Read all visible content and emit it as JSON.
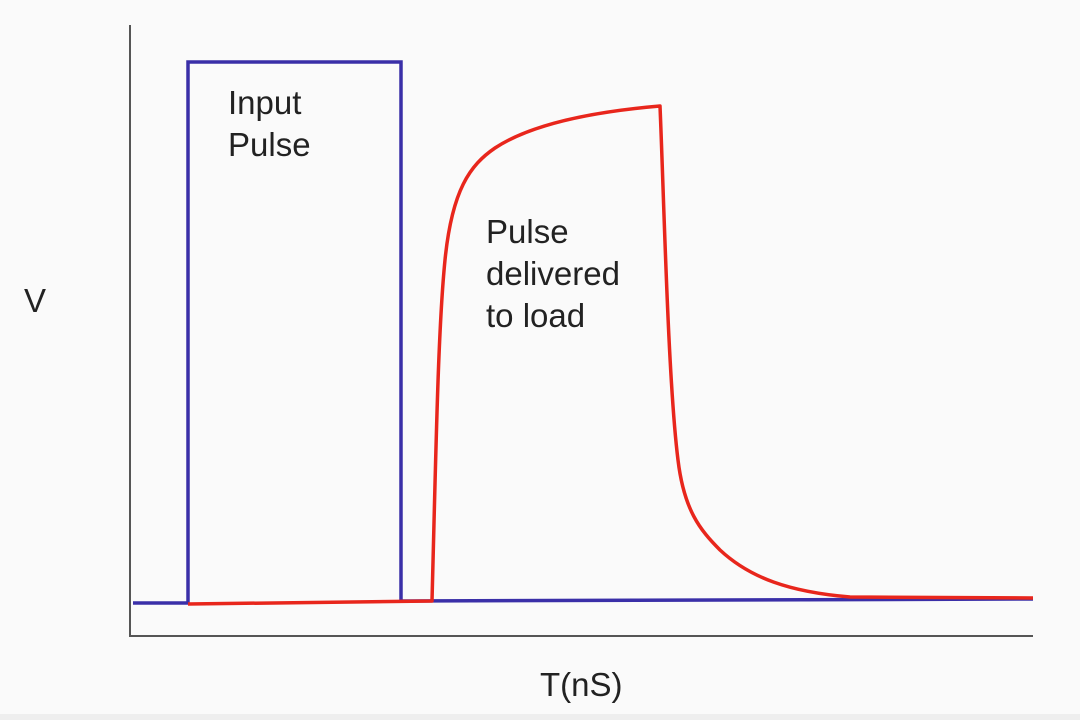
{
  "diagram": {
    "y_axis_label": "V",
    "x_axis_label": "T(nS)",
    "input_pulse": {
      "label_line1": "Input",
      "label_line2": "Pulse",
      "color": "#3a2fa8"
    },
    "output_pulse": {
      "label_line1": "Pulse",
      "label_line2": "delivered",
      "label_line3": "to load",
      "color": "#e8261c"
    },
    "axis_color": "#555555"
  }
}
